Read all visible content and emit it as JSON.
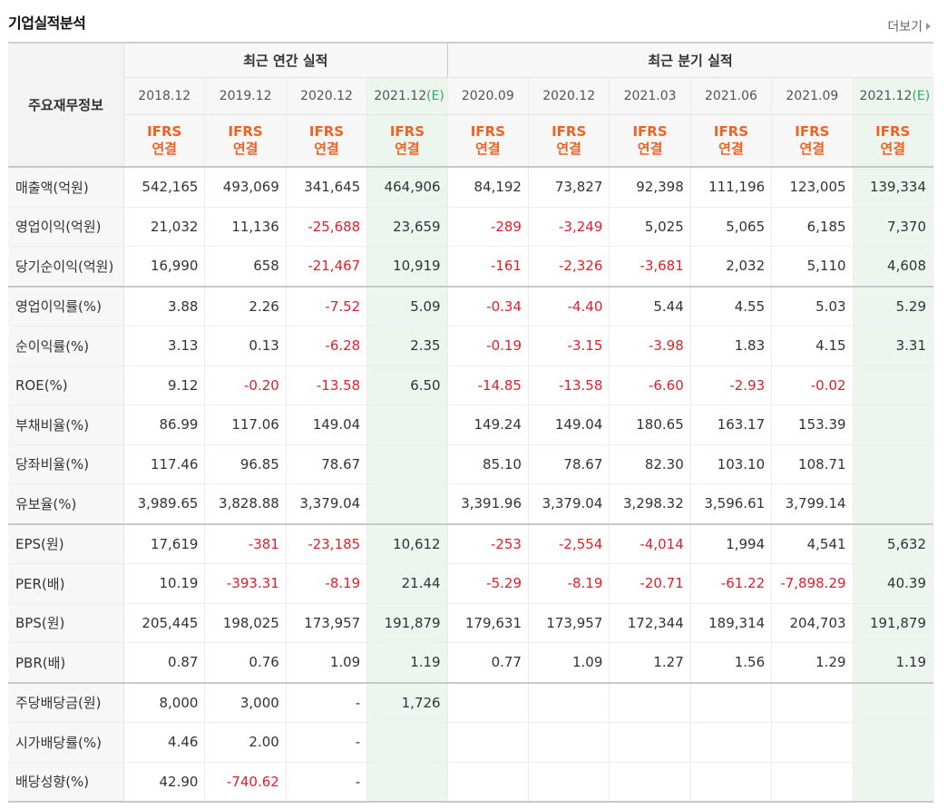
{
  "header": {
    "title": "기업실적분석",
    "more": "더보기"
  },
  "table": {
    "corner": "주요재무정보",
    "groups": [
      "최근 연간 실적",
      "최근 분기 실적"
    ],
    "annual_dates": [
      "2018.12",
      "2019.12",
      "2020.12",
      "2021.12"
    ],
    "quarter_dates": [
      "2020.09",
      "2020.12",
      "2021.03",
      "2021.06",
      "2021.09",
      "2021.12"
    ],
    "estimate_mark": "(E)",
    "ifrs_line1": "IFRS",
    "ifrs_line2": "연결",
    "rows": [
      {
        "label": "매출액(억원)",
        "values": [
          "542,165",
          "493,069",
          "341,645",
          "464,906",
          "84,192",
          "73,827",
          "92,398",
          "111,196",
          "123,005",
          "139,334"
        ]
      },
      {
        "label": "영업이익(억원)",
        "values": [
          "21,032",
          "11,136",
          "-25,688",
          "23,659",
          "-289",
          "-3,249",
          "5,025",
          "5,065",
          "6,185",
          "7,370"
        ]
      },
      {
        "label": "당기순이익(억원)",
        "values": [
          "16,990",
          "658",
          "-21,467",
          "10,919",
          "-161",
          "-2,326",
          "-3,681",
          "2,032",
          "5,110",
          "4,608"
        ]
      },
      {
        "label": "영업이익률(%)",
        "values": [
          "3.88",
          "2.26",
          "-7.52",
          "5.09",
          "-0.34",
          "-4.40",
          "5.44",
          "4.55",
          "5.03",
          "5.29"
        ]
      },
      {
        "label": "순이익률(%)",
        "values": [
          "3.13",
          "0.13",
          "-6.28",
          "2.35",
          "-0.19",
          "-3.15",
          "-3.98",
          "1.83",
          "4.15",
          "3.31"
        ]
      },
      {
        "label": "ROE(%)",
        "values": [
          "9.12",
          "-0.20",
          "-13.58",
          "6.50",
          "-14.85",
          "-13.58",
          "-6.60",
          "-2.93",
          "-0.02",
          ""
        ]
      },
      {
        "label": "부채비율(%)",
        "values": [
          "86.99",
          "117.06",
          "149.04",
          "",
          "149.24",
          "149.04",
          "180.65",
          "163.17",
          "153.39",
          ""
        ]
      },
      {
        "label": "당좌비율(%)",
        "values": [
          "117.46",
          "96.85",
          "78.67",
          "",
          "85.10",
          "78.67",
          "82.30",
          "103.10",
          "108.71",
          ""
        ]
      },
      {
        "label": "유보율(%)",
        "values": [
          "3,989.65",
          "3,828.88",
          "3,379.04",
          "",
          "3,391.96",
          "3,379.04",
          "3,298.32",
          "3,596.61",
          "3,799.14",
          ""
        ]
      },
      {
        "label": "EPS(원)",
        "values": [
          "17,619",
          "-381",
          "-23,185",
          "10,612",
          "-253",
          "-2,554",
          "-4,014",
          "1,994",
          "4,541",
          "5,632"
        ]
      },
      {
        "label": "PER(배)",
        "values": [
          "10.19",
          "-393.31",
          "-8.19",
          "21.44",
          "-5.29",
          "-8.19",
          "-20.71",
          "-61.22",
          "-7,898.29",
          "40.39"
        ]
      },
      {
        "label": "BPS(원)",
        "values": [
          "205,445",
          "198,025",
          "173,957",
          "191,879",
          "179,631",
          "173,957",
          "172,344",
          "189,314",
          "204,703",
          "191,879"
        ]
      },
      {
        "label": "PBR(배)",
        "values": [
          "0.87",
          "0.76",
          "1.09",
          "1.19",
          "0.77",
          "1.09",
          "1.27",
          "1.56",
          "1.29",
          "1.19"
        ]
      },
      {
        "label": "주당배당금(원)",
        "values": [
          "8,000",
          "3,000",
          "-",
          "1,726",
          "",
          "",
          "",
          "",
          "",
          ""
        ]
      },
      {
        "label": "시가배당률(%)",
        "values": [
          "4.46",
          "2.00",
          "-",
          "",
          "",
          "",
          "",
          "",
          "",
          ""
        ]
      },
      {
        "label": "배당성향(%)",
        "values": [
          "42.90",
          "-740.62",
          "-",
          "",
          "",
          "",
          "",
          "",
          "",
          ""
        ]
      }
    ]
  },
  "colors": {
    "negative": "#e0202a",
    "ifrs": "#ee6325",
    "estimate_bg": "#edf5ef",
    "estimate_mark": "#33a860"
  }
}
